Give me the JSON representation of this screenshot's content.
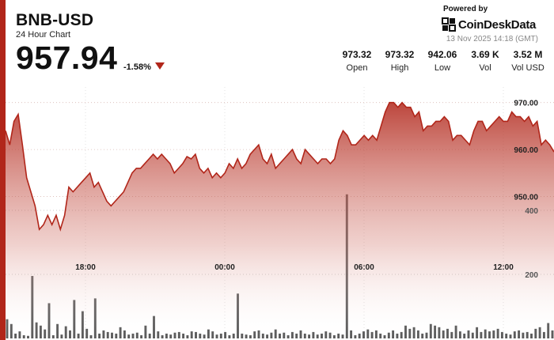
{
  "header": {
    "symbol": "BNB-USD",
    "subtitle": "24 Hour Chart",
    "price": "957.94",
    "change": "-1.58%",
    "powered_by": "Powered by",
    "brand": "CoinDeskData",
    "timestamp": "13 Nov 2025 14:18 (GMT)"
  },
  "stats": [
    {
      "value": "973.32",
      "label": "Open"
    },
    {
      "value": "973.32",
      "label": "High"
    },
    {
      "value": "942.06",
      "label": "Low"
    },
    {
      "value": "3.69 K",
      "label": "Vol"
    },
    {
      "value": "3.52 M",
      "label": "Vol USD"
    }
  ],
  "colors": {
    "accent": "#b1261a",
    "line": "#b1261a",
    "volume_bar": "#5a5a5a",
    "down": "#b1261a"
  },
  "chart_data": {
    "type": "area",
    "title": "",
    "x_labels": [
      "18:00",
      "00:00",
      "06:00",
      "12:00"
    ],
    "x_label_positions": [
      7,
      31,
      55,
      79
    ],
    "price_axis": {
      "ticks": [
        "950.00",
        "960.00",
        "970.00"
      ],
      "tick_values": [
        950,
        960,
        970
      ],
      "ylim": [
        940.5,
        975
      ]
    },
    "volume_axis": {
      "ticks": [
        "200",
        "400"
      ],
      "tick_values": [
        200,
        400
      ],
      "ylim": [
        0,
        810
      ]
    },
    "price": [
      964,
      961,
      966,
      967.5,
      961,
      954,
      951,
      948,
      943,
      944,
      946,
      944,
      946,
      943,
      946,
      952,
      951,
      952,
      953,
      954,
      955,
      952,
      953,
      951,
      949,
      948,
      949,
      950,
      951,
      953,
      955,
      956,
      956,
      957,
      958,
      959,
      958,
      959,
      958,
      957,
      955,
      956,
      957,
      958.5,
      958,
      959,
      956,
      955,
      956,
      954,
      955,
      954,
      955,
      957,
      956,
      958,
      956,
      957,
      959,
      960,
      961,
      958,
      957,
      959,
      956,
      957,
      958,
      959,
      960,
      958,
      957,
      960,
      959,
      958,
      957,
      958,
      958,
      957,
      958,
      962,
      964,
      963,
      961,
      961,
      962,
      963,
      962,
      963,
      962,
      965,
      968,
      970,
      970,
      969,
      970,
      969,
      969,
      967,
      968,
      964,
      965,
      965,
      966,
      966,
      967,
      966,
      962,
      963,
      963,
      962,
      961,
      964,
      966,
      966,
      964,
      965,
      966,
      967,
      966,
      966,
      968,
      967,
      967,
      966,
      967,
      965,
      966,
      961,
      962,
      961,
      959.5
    ],
    "volume": [
      60,
      45,
      15,
      22,
      10,
      8,
      195,
      50,
      40,
      28,
      110,
      10,
      45,
      12,
      38,
      25,
      120,
      15,
      85,
      30,
      10,
      125,
      15,
      25,
      20,
      18,
      15,
      35,
      25,
      12,
      15,
      18,
      10,
      40,
      15,
      70,
      22,
      10,
      15,
      12,
      18,
      20,
      15,
      10,
      22,
      20,
      15,
      12,
      28,
      22,
      12,
      15,
      20,
      10,
      15,
      140,
      15,
      12,
      10,
      22,
      25,
      15,
      12,
      18,
      28,
      15,
      18,
      10,
      20,
      15,
      25,
      15,
      12,
      20,
      12,
      15,
      22,
      18,
      10,
      15,
      12,
      450,
      25,
      10,
      15,
      22,
      28,
      20,
      25,
      15,
      10,
      18,
      25,
      15,
      20,
      40,
      30,
      35,
      25,
      15,
      18,
      45,
      40,
      35,
      25,
      30,
      20,
      40,
      22,
      15,
      25,
      18,
      35,
      20,
      28,
      22,
      25,
      30,
      20,
      15,
      12,
      22,
      25,
      18,
      20,
      15,
      30,
      35,
      20,
      48,
      25
    ]
  }
}
